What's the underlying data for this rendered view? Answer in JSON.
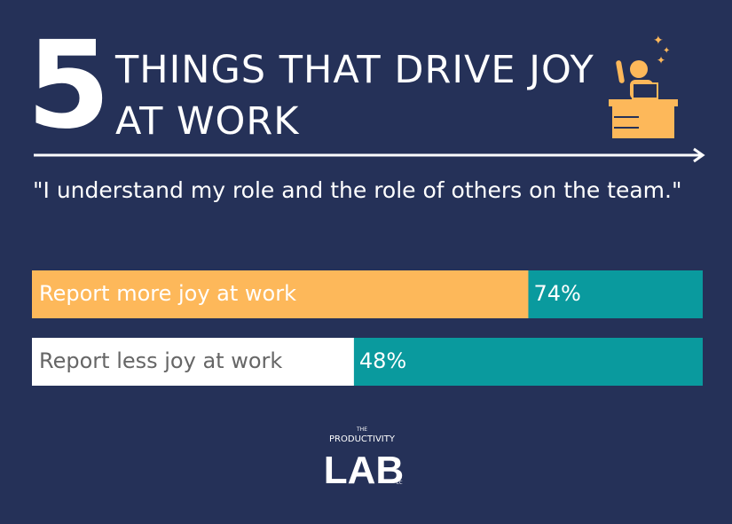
{
  "chart_data": {
    "type": "bar",
    "title_number": "5",
    "title": "THINGS THAT DRIVE JOY AT WORK",
    "subtitle": "\"I understand my role and the role of others on the team.\"",
    "categories": [
      "Report more joy at work",
      "Report less joy at work"
    ],
    "values": [
      74,
      48
    ],
    "value_labels": [
      "74%",
      "48%"
    ],
    "colors": [
      "#fdb85a",
      "#ffffff"
    ],
    "track_color": "#0a9a9e",
    "xlim": [
      0,
      100
    ]
  },
  "logo": {
    "top": "THE",
    "middle": "PRODUCTIVITY",
    "main": "LAB",
    "suffix": "CC"
  }
}
